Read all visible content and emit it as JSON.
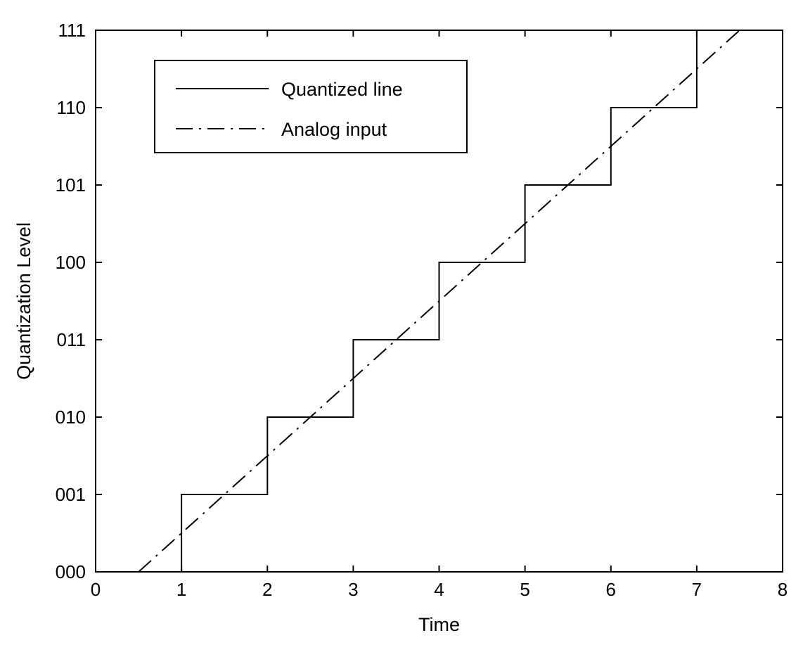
{
  "chart_data": {
    "type": "line",
    "title": "",
    "xlabel": "Time",
    "ylabel": "Quantization Level",
    "xlim": [
      0,
      8
    ],
    "ylim": [
      0,
      7
    ],
    "x_ticks": [
      0,
      1,
      2,
      3,
      4,
      5,
      6,
      7,
      8
    ],
    "x_tick_labels": [
      "0",
      "1",
      "2",
      "3",
      "4",
      "5",
      "6",
      "7",
      "8"
    ],
    "y_ticks": [
      0,
      1,
      2,
      3,
      4,
      5,
      6,
      7
    ],
    "y_tick_labels": [
      "000",
      "001",
      "010",
      "011",
      "100",
      "101",
      "110",
      "111"
    ],
    "grid": false,
    "legend_position": "top-left",
    "series": [
      {
        "name": "Quantized line",
        "style": "solid",
        "color": "#000000",
        "points": [
          [
            1,
            0
          ],
          [
            1,
            1
          ],
          [
            2,
            1
          ],
          [
            2,
            2
          ],
          [
            3,
            2
          ],
          [
            3,
            3
          ],
          [
            4,
            3
          ],
          [
            4,
            4
          ],
          [
            5,
            4
          ],
          [
            5,
            5
          ],
          [
            6,
            5
          ],
          [
            6,
            6
          ],
          [
            7,
            6
          ],
          [
            7,
            7
          ]
        ]
      },
      {
        "name": "Analog input",
        "style": "dashdot",
        "color": "#000000",
        "points": [
          [
            0.5,
            0
          ],
          [
            7.5,
            7
          ]
        ]
      }
    ]
  }
}
